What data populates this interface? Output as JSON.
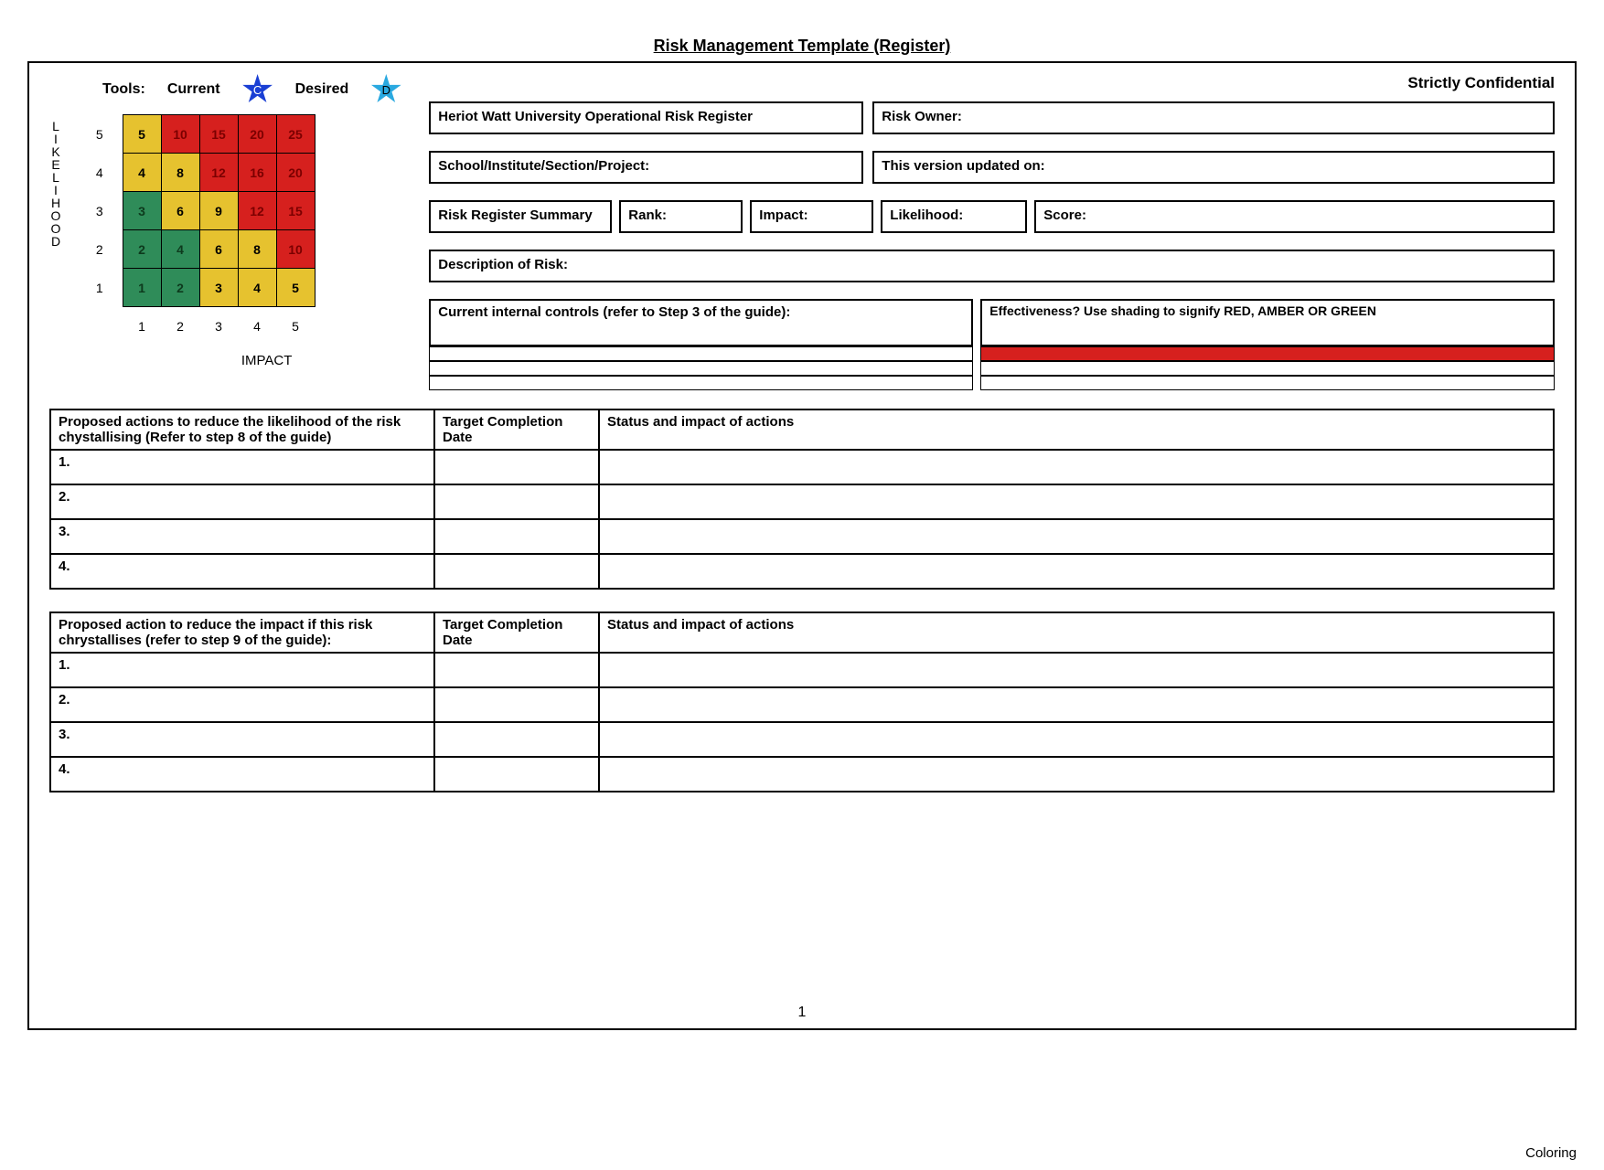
{
  "title": "Risk Management Template (Register)",
  "tools_label": "Tools:",
  "current_label": "Current",
  "desired_label": "Desired",
  "current_badge": "C",
  "desired_badge": "D",
  "confidential": "Strictly Confidential",
  "likelihood_vertical": "LIKELIHOOD",
  "impact_label": "IMPACT",
  "matrix": {
    "row_labels": [
      "5",
      "4",
      "3",
      "2",
      "1"
    ],
    "col_labels": [
      "1",
      "2",
      "3",
      "4",
      "5"
    ],
    "cells": [
      [
        {
          "v": "5",
          "bg": "#e6c22f",
          "fg": "#000"
        },
        {
          "v": "10",
          "bg": "#d6201e",
          "fg": "#7b0000"
        },
        {
          "v": "15",
          "bg": "#d6201e",
          "fg": "#7b0000"
        },
        {
          "v": "20",
          "bg": "#d6201e",
          "fg": "#7b0000"
        },
        {
          "v": "25",
          "bg": "#d6201e",
          "fg": "#7b0000"
        }
      ],
      [
        {
          "v": "4",
          "bg": "#e6c22f",
          "fg": "#000"
        },
        {
          "v": "8",
          "bg": "#e6c22f",
          "fg": "#000"
        },
        {
          "v": "12",
          "bg": "#d6201e",
          "fg": "#7b0000"
        },
        {
          "v": "16",
          "bg": "#d6201e",
          "fg": "#7b0000"
        },
        {
          "v": "20",
          "bg": "#d6201e",
          "fg": "#7b0000"
        }
      ],
      [
        {
          "v": "3",
          "bg": "#2f8c59",
          "fg": "#0d3a1d"
        },
        {
          "v": "6",
          "bg": "#e6c22f",
          "fg": "#000"
        },
        {
          "v": "9",
          "bg": "#e6c22f",
          "fg": "#000"
        },
        {
          "v": "12",
          "bg": "#d6201e",
          "fg": "#7b0000"
        },
        {
          "v": "15",
          "bg": "#d6201e",
          "fg": "#7b0000"
        }
      ],
      [
        {
          "v": "2",
          "bg": "#2f8c59",
          "fg": "#0d3a1d"
        },
        {
          "v": "4",
          "bg": "#2f8c59",
          "fg": "#0d3a1d"
        },
        {
          "v": "6",
          "bg": "#e6c22f",
          "fg": "#000"
        },
        {
          "v": "8",
          "bg": "#e6c22f",
          "fg": "#000"
        },
        {
          "v": "10",
          "bg": "#d6201e",
          "fg": "#7b0000"
        }
      ],
      [
        {
          "v": "1",
          "bg": "#2f8c59",
          "fg": "#0d3a1d"
        },
        {
          "v": "2",
          "bg": "#2f8c59",
          "fg": "#0d3a1d"
        },
        {
          "v": "3",
          "bg": "#e6c22f",
          "fg": "#000"
        },
        {
          "v": "4",
          "bg": "#e6c22f",
          "fg": "#000"
        },
        {
          "v": "5",
          "bg": "#e6c22f",
          "fg": "#000"
        }
      ]
    ]
  },
  "form": {
    "register_title": "Heriot Watt University Operational Risk Register",
    "risk_owner": "Risk Owner:",
    "school_section": "School/Institute/Section/Project:",
    "updated_on": "This version updated on:",
    "summary": "Risk Register Summary",
    "rank": "Rank:",
    "impact": "Impact:",
    "likelihood": "Likelihood:",
    "score": "Score:",
    "description": "Description of Risk:",
    "controls": "Current internal controls (refer to Step 3 of the guide):",
    "effectiveness": "Effectiveness? Use shading to signify RED, AMBER OR GREEN",
    "red_bar_color": "#d6201e"
  },
  "actions1": {
    "h1": "Proposed actions to reduce the likelihood of the risk chystallising (Refer to step 8 of the guide)",
    "h2": "Target Completion Date",
    "h3": "Status and impact of actions",
    "rows": [
      "1.",
      "2.",
      "3.",
      "4."
    ]
  },
  "actions2": {
    "h1": "Proposed action to reduce the impact if this risk chrystallises (refer to step 9 of the guide):",
    "h2": "Target Completion Date",
    "h3": "Status and impact of actions",
    "rows": [
      "1.",
      "2.",
      "3.",
      "4."
    ]
  },
  "page_number": "1",
  "footer_right": "Coloring",
  "colors": {
    "star_current": "#1a3fd4",
    "star_desired": "#2aa9e0"
  }
}
